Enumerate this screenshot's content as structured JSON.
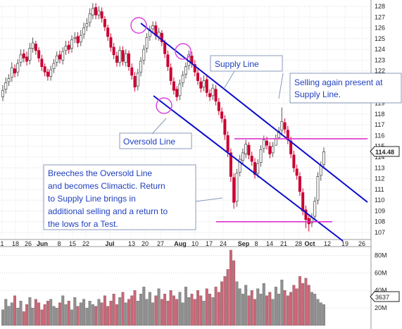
{
  "chart_data": {
    "type": "candlestick",
    "title": "",
    "xlabel": "",
    "ylabel": "",
    "ylim": [
      106.5,
      128.5
    ],
    "volume_ylim": [
      0,
      90
    ],
    "x_tick_labels": [
      "1",
      "18",
      "26",
      "Jun",
      "8",
      "15",
      "22",
      "Jul",
      "13",
      "20",
      "27",
      "Aug",
      "10",
      "17",
      "24",
      "Sep",
      "8",
      "14",
      "21",
      "28",
      "Oct",
      "12",
      "19",
      "26"
    ],
    "y_tick_labels": [
      "128",
      "127",
      "126",
      "125",
      "124",
      "123",
      "122",
      "121",
      "120",
      "119",
      "118",
      "117",
      "116",
      "115",
      "114",
      "113",
      "112",
      "111",
      "110",
      "109",
      "108",
      "107"
    ],
    "volume_tick_labels": [
      "80M",
      "60M",
      "40M",
      "20M"
    ],
    "last_price_label": "114.48",
    "last_volume_label": "3637",
    "annotations": [
      {
        "text": "Supply Line"
      },
      {
        "text": "Selling again present at Supply Line."
      },
      {
        "text": "Oversold Line"
      },
      {
        "text": "Breeches the Oversold Line and becomes Climactic. Return to Supply Line brings in additional selling and a return to the lows for a Test."
      }
    ],
    "price_series": {
      "close": [
        120.2,
        120.9,
        121.3,
        122.3,
        121.8,
        122.7,
        123.5,
        123.2,
        122.9,
        124.1,
        124.6,
        123.9,
        123.2,
        122.4,
        121.9,
        121.5,
        122.1,
        122.7,
        123.4,
        123.1,
        123.8,
        124.3,
        124.0,
        124.9,
        125.1,
        124.6,
        125.3,
        126.0,
        126.4,
        127.3,
        127.8,
        127.2,
        127.6,
        126.9,
        126.1,
        125.2,
        124.2,
        123.5,
        122.8,
        123.9,
        122.9,
        123.6,
        122.4,
        121.6,
        120.5,
        121.8,
        122.9,
        124.0,
        125.1,
        125.8,
        126.2,
        125.3,
        125.6,
        124.7,
        123.6,
        122.4,
        121.1,
        120.2,
        119.6,
        120.8,
        121.6,
        122.4,
        123.5,
        122.7,
        121.9,
        121.1,
        120.4,
        121.1,
        120.0,
        119.6,
        120.4,
        119.2,
        118.3,
        117.6,
        116.1,
        114.5,
        112.2,
        109.8,
        112.5,
        113.8,
        114.4,
        115.2,
        114.2,
        113.6,
        112.4,
        113.4,
        114.7,
        115.6,
        115.1,
        114.3,
        115.0,
        115.7,
        116.4,
        117.3,
        116.6,
        115.6,
        114.3,
        113.0,
        112.3,
        110.8,
        109.0,
        108.2,
        107.8,
        108.4,
        109.9,
        112.2,
        113.2,
        114.5
      ],
      "open": [
        119.6,
        120.3,
        121.0,
        121.4,
        122.2,
        121.9,
        122.8,
        123.6,
        123.3,
        123.0,
        124.1,
        124.5,
        123.9,
        123.1,
        122.4,
        121.9,
        121.5,
        122.2,
        122.8,
        123.5,
        123.0,
        123.9,
        124.4,
        124.1,
        125.0,
        125.2,
        124.7,
        125.4,
        126.1,
        126.5,
        127.2,
        127.9,
        127.2,
        127.5,
        126.8,
        126.0,
        125.1,
        124.2,
        123.4,
        122.8,
        123.9,
        122.8,
        123.6,
        122.3,
        121.5,
        120.6,
        121.9,
        123.0,
        124.1,
        125.2,
        125.9,
        126.2,
        125.2,
        125.5,
        124.6,
        123.5,
        122.3,
        121.0,
        120.3,
        119.7,
        120.9,
        121.7,
        122.5,
        123.4,
        122.6,
        121.8,
        121.0,
        120.5,
        121.2,
        119.9,
        119.7,
        120.3,
        119.1,
        118.2,
        117.5,
        116.0,
        114.4,
        112.1,
        109.9,
        112.6,
        113.7,
        114.3,
        115.1,
        114.1,
        113.5,
        112.5,
        113.5,
        114.8,
        115.5,
        115.0,
        114.4,
        115.1,
        115.8,
        116.5,
        117.2,
        116.5,
        115.5,
        114.2,
        112.9,
        112.2,
        110.7,
        109.1,
        108.3,
        107.9,
        108.5,
        110.0,
        112.3,
        113.3
      ],
      "high": [
        120.7,
        121.4,
        121.7,
        122.8,
        122.6,
        123.1,
        124.0,
        124.0,
        123.8,
        124.6,
        125.1,
        124.8,
        124.2,
        123.5,
        122.7,
        122.2,
        122.5,
        123.1,
        123.8,
        123.9,
        124.2,
        124.8,
        124.8,
        125.3,
        125.6,
        125.6,
        125.8,
        126.5,
        126.9,
        127.8,
        128.3,
        128.3,
        128.0,
        127.9,
        127.1,
        126.3,
        125.5,
        124.6,
        123.8,
        124.3,
        124.3,
        124.0,
        123.9,
        122.7,
        121.9,
        122.2,
        123.3,
        124.4,
        125.5,
        126.2,
        126.6,
        126.6,
        126.0,
        125.8,
        124.9,
        123.9,
        122.7,
        121.4,
        120.6,
        121.2,
        122.0,
        122.8,
        123.9,
        123.8,
        123.0,
        122.2,
        121.4,
        121.6,
        121.6,
        120.3,
        120.8,
        120.7,
        119.5,
        118.6,
        117.9,
        116.4,
        114.8,
        112.5,
        112.9,
        114.2,
        114.8,
        115.6,
        115.4,
        114.5,
        113.9,
        113.8,
        115.1,
        116.0,
        115.9,
        115.4,
        115.4,
        116.1,
        116.8,
        118.6,
        117.6,
        116.9,
        115.9,
        114.6,
        113.3,
        112.6,
        111.1,
        109.5,
        108.7,
        108.8,
        110.3,
        112.6,
        113.6,
        114.9
      ],
      "low": [
        119.2,
        119.9,
        120.6,
        121.0,
        121.4,
        121.5,
        122.4,
        122.8,
        122.5,
        122.6,
        123.7,
        123.5,
        122.8,
        122.0,
        121.5,
        121.1,
        121.1,
        121.8,
        122.4,
        122.7,
        122.6,
        123.5,
        123.6,
        123.7,
        124.6,
        124.2,
        124.3,
        125.0,
        125.7,
        126.1,
        126.8,
        126.8,
        126.8,
        126.5,
        125.7,
        124.8,
        123.8,
        123.1,
        122.4,
        122.4,
        122.5,
        122.4,
        122.0,
        121.2,
        120.1,
        120.2,
        121.5,
        122.6,
        123.7,
        124.8,
        125.5,
        124.9,
        124.8,
        124.3,
        123.2,
        122.0,
        120.7,
        119.8,
        119.2,
        119.3,
        120.5,
        121.3,
        122.1,
        122.3,
        121.5,
        120.7,
        120.0,
        120.1,
        119.6,
        119.2,
        119.3,
        118.8,
        117.9,
        117.2,
        115.6,
        114.0,
        111.7,
        109.2,
        109.4,
        112.2,
        113.3,
        113.9,
        113.8,
        113.2,
        112.0,
        112.1,
        113.1,
        114.4,
        114.7,
        113.9,
        114.0,
        115.3,
        116.0,
        116.1,
        116.2,
        115.2,
        113.9,
        112.6,
        111.9,
        110.4,
        108.6,
        107.4,
        107.1,
        107.5,
        108.1,
        109.6,
        111.8,
        112.9
      ]
    },
    "volume_series": {
      "values": [
        18,
        30,
        22,
        26,
        34,
        20,
        28,
        16,
        24,
        32,
        20,
        30,
        26,
        18,
        24,
        28,
        30,
        22,
        20,
        26,
        34,
        24,
        28,
        18,
        32,
        22,
        26,
        30,
        20,
        28,
        24,
        22,
        30,
        26,
        34,
        22,
        28,
        36,
        24,
        32,
        38,
        26,
        30,
        34,
        40,
        28,
        36,
        44,
        30,
        38,
        26,
        34,
        42,
        30,
        36,
        28,
        40,
        34,
        30,
        38,
        26,
        44,
        32,
        36,
        30,
        40,
        34,
        28,
        42,
        36,
        32,
        44,
        38,
        50,
        56,
        64,
        86,
        74,
        50,
        42,
        36,
        46,
        34,
        40,
        30,
        42,
        36,
        48,
        34,
        38,
        30,
        44,
        36,
        52,
        40,
        34,
        38,
        46,
        42,
        56,
        48,
        54,
        46,
        38,
        36,
        30,
        26,
        24
      ]
    },
    "line_colors": {
      "trend": "#0c0ccc",
      "horizontal": "#dd22cc",
      "up_candle": "#555555",
      "down_candle": "#cc0033",
      "volume_up": "#909090",
      "volume_down": "#cc6677"
    }
  }
}
